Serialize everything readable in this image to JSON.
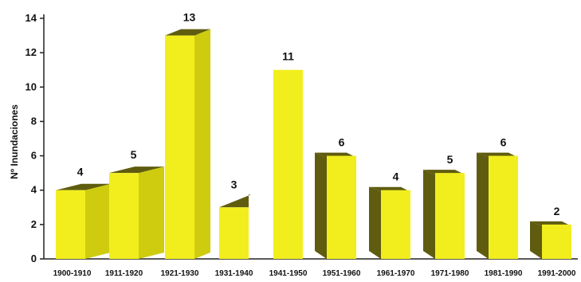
{
  "chart_data": {
    "type": "bar",
    "ylabel": "Nº Inundaciones",
    "categories": [
      "1900-1910",
      "1911-1920",
      "1921-1930",
      "1931-1940",
      "1941-1950",
      "1951-1960",
      "1961-1970",
      "1971-1980",
      "1981-1990",
      "1991-2000"
    ],
    "values": [
      4,
      5,
      13,
      3,
      11,
      6,
      4,
      5,
      6,
      2
    ],
    "data_labels": [
      "4",
      "5",
      "13",
      "3",
      "11",
      "6",
      "4",
      "5",
      "6",
      "2"
    ],
    "ylim": [
      0,
      14
    ],
    "yticks": [
      "0",
      "2",
      "4",
      "6",
      "8",
      "10",
      "12",
      "14"
    ],
    "grid": false,
    "style": "3d-bar",
    "colors": {
      "front": "#f2ee1e",
      "side_light": "#cfcc10",
      "side_dark": "#5f5c10",
      "axis": "#222222"
    }
  }
}
